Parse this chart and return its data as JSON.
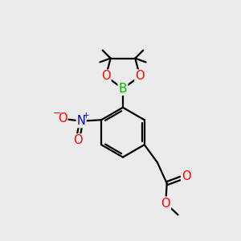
{
  "background_color": "#ebebeb",
  "bond_color": "#000000",
  "bond_width": 1.6,
  "atom_colors": {
    "O": "#ff0000",
    "N": "#0000cc",
    "B": "#00bb00"
  },
  "font_size_atoms": 10.5,
  "font_size_small": 8.5
}
